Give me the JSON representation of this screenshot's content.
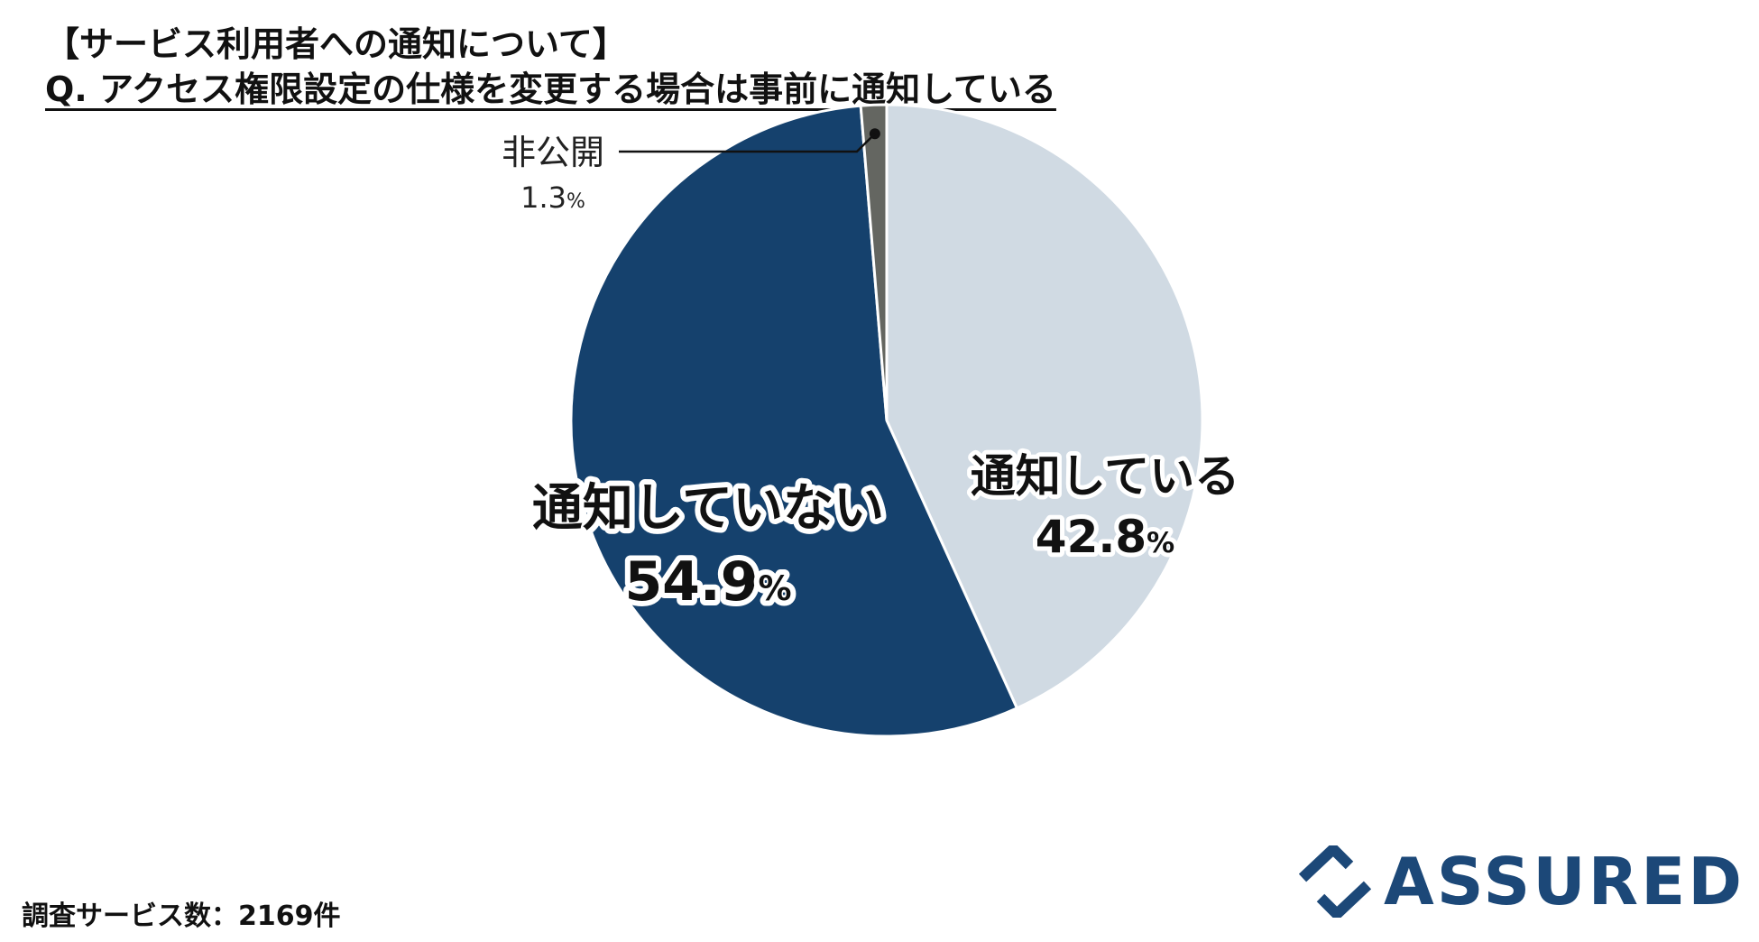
{
  "title": {
    "line1": "【サービス利用者への通知について】",
    "line2": "Q. アクセス権限設定の仕様を変更する場合は事前に通知している"
  },
  "chart_data": {
    "type": "pie",
    "start_angle_deg": 0,
    "direction": "clockwise",
    "slices": [
      {
        "label": "通知している",
        "value": 42.8,
        "value_text": "42.8",
        "unit": "%",
        "color": "#d0dae3"
      },
      {
        "label": "通知していない",
        "value": 54.9,
        "value_text": "54.9",
        "unit": "%",
        "color": "#15416d"
      },
      {
        "label": "非公開",
        "value": 1.3,
        "value_text": "1.3",
        "unit": "%",
        "color": "#646661"
      }
    ]
  },
  "footnote": "調査サービス数：2169件",
  "logo": {
    "text": "ASSURED",
    "icon": "assured-chevron-logo-icon",
    "color": "#1c4878"
  }
}
